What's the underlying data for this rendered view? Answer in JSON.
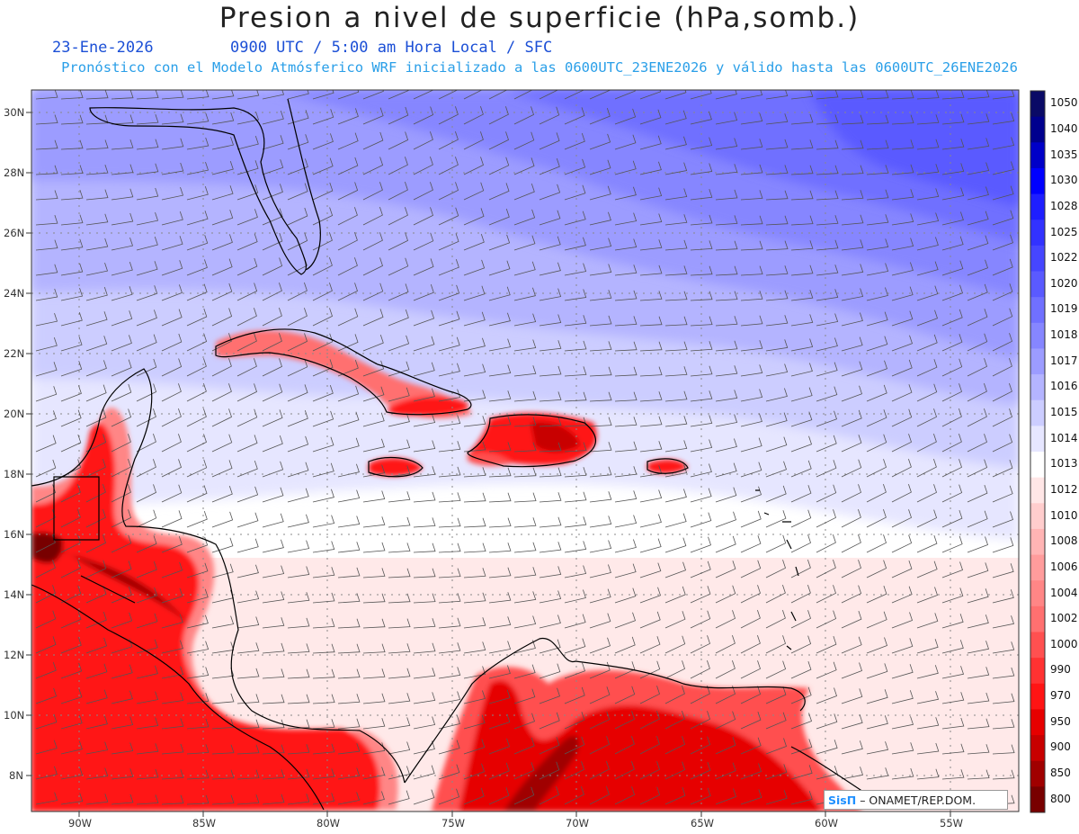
{
  "header": {
    "title": "Presion a nivel de superficie (hPa,somb.)",
    "date": "23-Ene-2026",
    "time_info": "0900 UTC / 5:00 am Hora Local / SFC",
    "forecast_info": "Pronóstico con el Modelo Atmósferico WRF inicializado a las 0600UTC_23ENE2026 y válido hasta las  0600UTC_26ENE2026"
  },
  "axes": {
    "lat_labels": [
      "30N",
      "28N",
      "26N",
      "24N",
      "22N",
      "20N",
      "18N",
      "16N",
      "14N",
      "12N",
      "10N",
      "8N"
    ],
    "lon_labels": [
      "90W",
      "85W",
      "80W",
      "75W",
      "70W",
      "65W",
      "60W",
      "55W"
    ]
  },
  "colorbar": {
    "levels": [
      "1050",
      "1040",
      "1035",
      "1030",
      "1028",
      "1025",
      "1022",
      "1020",
      "1019",
      "1018",
      "1017",
      "1016",
      "1015",
      "1014",
      "1013",
      "1012",
      "1010",
      "1008",
      "1006",
      "1004",
      "1002",
      "1000",
      "990",
      "970",
      "950",
      "900",
      "850",
      "800"
    ],
    "colors": [
      "#0a0a66",
      "#00008e",
      "#0000c8",
      "#0000ff",
      "#1e1eff",
      "#3232ff",
      "#4646ff",
      "#5a5aff",
      "#7070ff",
      "#8686ff",
      "#9c9cff",
      "#b4b4ff",
      "#cccdff",
      "#e6e6ff",
      "#ffffff",
      "#ffe6e6",
      "#ffcdcd",
      "#ffb4b4",
      "#ff9c9c",
      "#ff8686",
      "#ff7070",
      "#ff5050",
      "#ff3232",
      "#ff1414",
      "#e60000",
      "#c80000",
      "#a00000",
      "#780000"
    ]
  },
  "credit": {
    "brand": "SisΠ",
    "org": "– ONAMET/REP.DOM."
  }
}
